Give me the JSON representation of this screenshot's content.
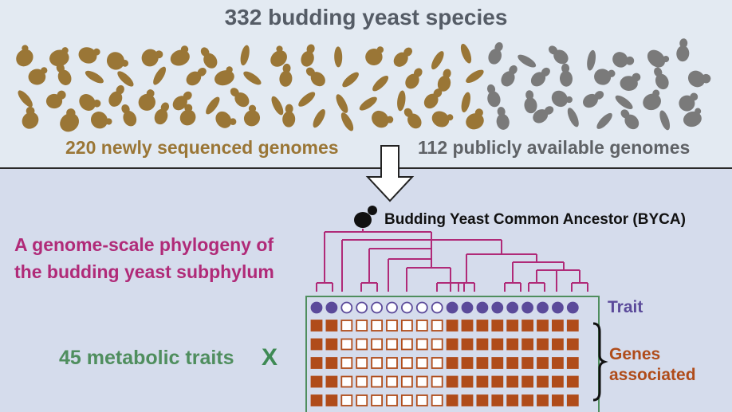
{
  "header": {
    "title": "332 budding yeast species",
    "new_genomes_label": "220 newly sequenced genomes",
    "public_genomes_label": "112 publicly available genomes"
  },
  "colors": {
    "new_cell": "#9a7636",
    "public_cell": "#7a7a7a",
    "tree": "#b02a78",
    "trait": "#5b4a9a",
    "gene": "#b04c1a",
    "panel_border": "#4f8e5e"
  },
  "phylogeny": {
    "label_line1": "A genome-scale phylogeny of",
    "label_line2": "the budding yeast subphylum",
    "root_label": "Budding Yeast Common Ancestor (BYCA)",
    "root_icon": "budding-yeast-icon"
  },
  "matrix": {
    "traits_label": "45 metabolic traits",
    "times_symbol": "X",
    "trait_legend": "Trait",
    "genes_legend_line1": "Genes",
    "genes_legend_line2": "associated",
    "trait_row": [
      1,
      1,
      0,
      0,
      0,
      0,
      0,
      0,
      0,
      1,
      1,
      1,
      1,
      1,
      1,
      1,
      1,
      1
    ],
    "gene_rows": [
      [
        1,
        1,
        0,
        0,
        0,
        0,
        0,
        0,
        0,
        1,
        1,
        1,
        1,
        1,
        1,
        1,
        1,
        1
      ],
      [
        1,
        1,
        0,
        0,
        0,
        0,
        0,
        0,
        0,
        1,
        1,
        1,
        1,
        1,
        1,
        1,
        1,
        1
      ],
      [
        1,
        1,
        0,
        0,
        0,
        0,
        0,
        0,
        0,
        1,
        1,
        1,
        1,
        1,
        1,
        1,
        1,
        1
      ],
      [
        1,
        1,
        0,
        0,
        0,
        0,
        0,
        0,
        0,
        1,
        1,
        1,
        1,
        1,
        1,
        1,
        1,
        1
      ],
      [
        1,
        1,
        0,
        0,
        0,
        0,
        0,
        0,
        0,
        1,
        1,
        1,
        1,
        1,
        1,
        1,
        1,
        1
      ]
    ]
  }
}
